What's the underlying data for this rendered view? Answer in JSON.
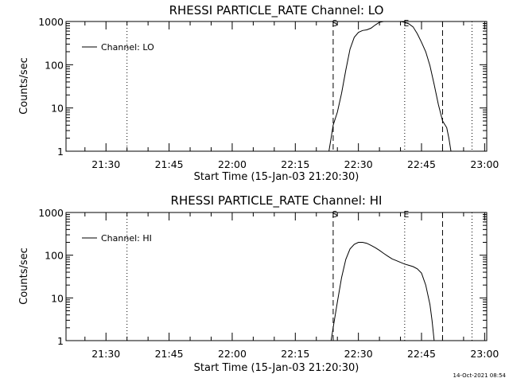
{
  "chart_data": [
    {
      "type": "line",
      "title": "RHESSI PARTICLE_RATE Channel: LO",
      "xlabel": "Start Time (15-Jan-03 21:20:30)",
      "ylabel": "Counts/sec",
      "y_scale": "log",
      "ylim": [
        1,
        1000
      ],
      "xlim": [
        "21:20:30",
        "23:00:30"
      ],
      "x_ticks": [
        "21:30",
        "21:45",
        "22:00",
        "22:15",
        "22:30",
        "22:45",
        "23:00"
      ],
      "y_ticks": [
        "1",
        "10",
        "100",
        "1000"
      ],
      "legend": {
        "position": "top-left",
        "entries": [
          "Channel: LO"
        ]
      },
      "markers": [
        {
          "time": "21:35",
          "style": "dotted",
          "label": ""
        },
        {
          "time": "22:24",
          "style": "dashed",
          "label": "S"
        },
        {
          "time": "22:41",
          "style": "dotted",
          "label": "E"
        },
        {
          "time": "22:50",
          "style": "dashed",
          "label": ""
        },
        {
          "time": "22:57",
          "style": "dotted",
          "label": ""
        }
      ],
      "series": [
        {
          "name": "Channel: LO",
          "points": [
            [
              "22:23:00",
              1
            ],
            [
              "22:23:30",
              2
            ],
            [
              "22:24:00",
              4
            ],
            [
              "22:25:00",
              8
            ],
            [
              "22:26:00",
              22
            ],
            [
              "22:27:00",
              75
            ],
            [
              "22:28:00",
              230
            ],
            [
              "22:29:00",
              430
            ],
            [
              "22:30:00",
              560
            ],
            [
              "22:31:00",
              620
            ],
            [
              "22:32:00",
              640
            ],
            [
              "22:33:00",
              700
            ],
            [
              "22:34:00",
              830
            ],
            [
              "22:35:00",
              960
            ],
            [
              "22:36:00",
              1000
            ],
            [
              "22:38:00",
              1000
            ],
            [
              "22:40:00",
              1000
            ],
            [
              "22:41:00",
              960
            ],
            [
              "22:42:00",
              880
            ],
            [
              "22:43:00",
              750
            ],
            [
              "22:44:00",
              520
            ],
            [
              "22:45:00",
              330
            ],
            [
              "22:46:00",
              200
            ],
            [
              "22:47:00",
              95
            ],
            [
              "22:48:00",
              35
            ],
            [
              "22:49:00",
              12
            ],
            [
              "22:50:00",
              5
            ],
            [
              "22:51:00",
              3.5
            ],
            [
              "22:51:30",
              2
            ],
            [
              "22:52:00",
              1
            ]
          ]
        }
      ]
    },
    {
      "type": "line",
      "title": "RHESSI PARTICLE_RATE Channel: HI",
      "xlabel": "Start Time (15-Jan-03 21:20:30)",
      "ylabel": "Counts/sec",
      "y_scale": "log",
      "ylim": [
        1,
        1000
      ],
      "xlim": [
        "21:20:30",
        "23:00:30"
      ],
      "x_ticks": [
        "21:30",
        "21:45",
        "22:00",
        "22:15",
        "22:30",
        "22:45",
        "23:00"
      ],
      "y_ticks": [
        "1",
        "10",
        "100",
        "1000"
      ],
      "legend": {
        "position": "top-left",
        "entries": [
          "Channel: HI"
        ]
      },
      "markers": [
        {
          "time": "21:35",
          "style": "dotted",
          "label": ""
        },
        {
          "time": "22:24",
          "style": "dashed",
          "label": "S"
        },
        {
          "time": "22:41",
          "style": "dotted",
          "label": "E"
        },
        {
          "time": "22:50",
          "style": "dashed",
          "label": ""
        },
        {
          "time": "22:57",
          "style": "dotted",
          "label": ""
        }
      ],
      "series": [
        {
          "name": "Channel: HI",
          "points": [
            [
              "22:23:30",
              1
            ],
            [
              "22:24:00",
              2
            ],
            [
              "22:25:00",
              8
            ],
            [
              "22:26:00",
              30
            ],
            [
              "22:27:00",
              80
            ],
            [
              "22:28:00",
              140
            ],
            [
              "22:29:00",
              180
            ],
            [
              "22:30:00",
              200
            ],
            [
              "22:31:00",
              200
            ],
            [
              "22:32:00",
              190
            ],
            [
              "22:33:00",
              170
            ],
            [
              "22:34:00",
              150
            ],
            [
              "22:35:00",
              130
            ],
            [
              "22:36:00",
              110
            ],
            [
              "22:37:00",
              95
            ],
            [
              "22:38:00",
              82
            ],
            [
              "22:39:00",
              75
            ],
            [
              "22:40:00",
              68
            ],
            [
              "22:41:00",
              62
            ],
            [
              "22:42:00",
              58
            ],
            [
              "22:43:00",
              54
            ],
            [
              "22:44:00",
              48
            ],
            [
              "22:45:00",
              38
            ],
            [
              "22:46:00",
              20
            ],
            [
              "22:47:00",
              7
            ],
            [
              "22:47:30",
              3
            ],
            [
              "22:48:00",
              1
            ]
          ]
        }
      ]
    }
  ],
  "footer": {
    "timestamp": "14-Oct-2021 08:54"
  }
}
